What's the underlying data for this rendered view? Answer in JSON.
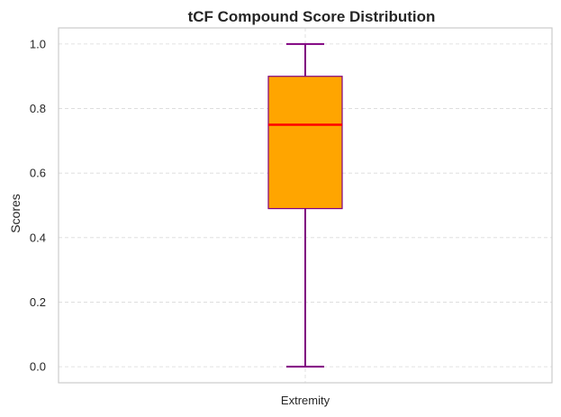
{
  "chart_data": {
    "type": "box",
    "title": "tCF Compound Score Distribution",
    "xlabel": "",
    "ylabel": "Scores",
    "categories": [
      "Extremity"
    ],
    "boxes": [
      {
        "category": "Extremity",
        "whisker_low": 0.0,
        "q1": 0.49,
        "median": 0.75,
        "q3": 0.9,
        "whisker_high": 1.0
      }
    ],
    "ylim": [
      -0.05,
      1.05
    ],
    "yticks": [
      "0.0",
      "0.2",
      "0.4",
      "0.6",
      "0.8",
      "1.0"
    ],
    "ytick_values": [
      0.0,
      0.2,
      0.4,
      0.6,
      0.8,
      1.0
    ],
    "grid": true,
    "grid_style": "dashed",
    "colors": {
      "box_fill": "#FFA500",
      "box_edge": "#800080",
      "median": "#FF0000",
      "whisker": "#800080",
      "grid": "#d9d9d9",
      "spine": "#cccccc"
    }
  }
}
